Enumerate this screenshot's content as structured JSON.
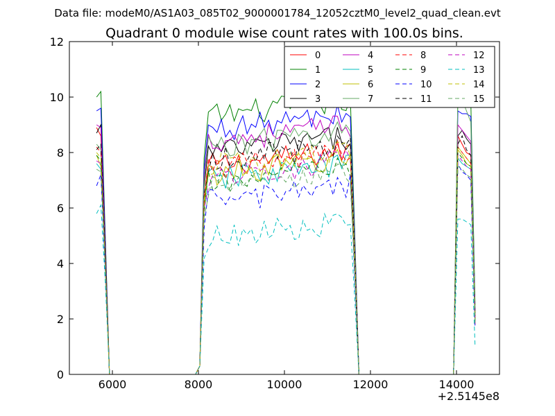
{
  "figure": {
    "suptitle": "Data file: modeM0/AS1A03_085T02_9000001784_12052cztM0_level2_quad_clean.evt"
  },
  "chart_data": {
    "type": "line",
    "title": "Quadrant 0 module wise count rates with 100.0s bins.",
    "xlabel": "",
    "ylabel": "",
    "x_offset_label": "+2.5145e8",
    "xlim": [
      5000,
      15000
    ],
    "ylim": [
      0,
      12
    ],
    "xticks": [
      6000,
      8000,
      10000,
      12000,
      14000
    ],
    "xtick_labels": [
      "6000",
      "8000",
      "10000",
      "12000",
      "14000"
    ],
    "yticks": [
      0,
      2,
      4,
      6,
      8,
      10,
      12
    ],
    "ytick_labels": [
      "0",
      "2",
      "4",
      "6",
      "8",
      "10",
      "12"
    ],
    "grid": false,
    "legend_position": "top-right",
    "legend_columns": 4,
    "x": [
      5632,
      5732,
      5832,
      5932,
      6032,
      6132,
      6232,
      6332,
      6432,
      6532,
      6632,
      6732,
      6832,
      6932,
      7032,
      7132,
      7232,
      7332,
      7432,
      7532,
      7632,
      7732,
      7832,
      7932,
      8032,
      8132,
      8232,
      8332,
      8432,
      8532,
      8632,
      8732,
      8832,
      8932,
      9032,
      9132,
      9232,
      9332,
      9432,
      9532,
      9632,
      9732,
      9832,
      9932,
      10032,
      10132,
      10232,
      10332,
      10432,
      10532,
      10632,
      10732,
      10832,
      10932,
      11032,
      11132,
      11232,
      11332,
      11432,
      11532,
      11632,
      11732,
      11832,
      11932,
      12032,
      12132,
      12232,
      12332,
      12432,
      12532,
      12632,
      12732,
      12832,
      12932,
      13032,
      13132,
      13232,
      13332,
      13432,
      13532,
      13632,
      13732,
      13832,
      13932,
      14032,
      14132,
      14232,
      14332,
      14432
    ],
    "segments": [
      {
        "start": 5632,
        "end": 5832,
        "points": 3
      },
      {
        "start": 8132,
        "end": 11632,
        "points": 36
      },
      {
        "start": 14032,
        "end": 14432,
        "points": 5
      }
    ],
    "series": [
      {
        "name": "0",
        "color": "#ff0000",
        "dash": "solid",
        "levels": [
          8.9,
          8.6,
          4.8
        ],
        "plateau": 7.7,
        "tail": [
          8.6,
          8.3,
          8.0,
          7.9,
          2.2
        ]
      },
      {
        "name": "1",
        "color": "#008000",
        "dash": "solid",
        "levels": [
          10.0,
          10.2,
          5.1
        ],
        "plateau": 9.5,
        "tail": [
          10.1,
          9.8,
          9.9,
          9.9,
          2.5
        ]
      },
      {
        "name": "2",
        "color": "#0000ff",
        "dash": "solid",
        "levels": [
          9.5,
          9.6,
          4.9
        ],
        "plateau": 9.0,
        "tail": [
          9.5,
          9.4,
          9.4,
          9.3,
          2.3
        ]
      },
      {
        "name": "3",
        "color": "#000000",
        "dash": "solid",
        "levels": [
          8.7,
          9.0,
          4.7
        ],
        "plateau": 8.2,
        "tail": [
          8.6,
          8.8,
          8.5,
          8.3,
          2.2
        ]
      },
      {
        "name": "4",
        "color": "#bf00bf",
        "dash": "solid",
        "levels": [
          9.0,
          8.9,
          4.6
        ],
        "plateau": 8.6,
        "tail": [
          9.0,
          8.8,
          8.6,
          8.4,
          2.1
        ]
      },
      {
        "name": "5",
        "color": "#00bfbf",
        "dash": "solid",
        "levels": [
          7.6,
          7.4,
          4.1
        ],
        "plateau": 7.2,
        "tail": [
          7.8,
          7.6,
          7.5,
          7.4,
          1.9
        ]
      },
      {
        "name": "6",
        "color": "#bfbf00",
        "dash": "solid",
        "levels": [
          7.9,
          7.5,
          4.0
        ],
        "plateau": 7.4,
        "tail": [
          8.1,
          7.9,
          7.6,
          7.5,
          1.8
        ]
      },
      {
        "name": "7",
        "color": "#66aa66",
        "dash": "solid",
        "levels": [
          8.3,
          8.1,
          4.3
        ],
        "plateau": 8.4,
        "tail": [
          10.1,
          9.9,
          9.5,
          9.1,
          2.2
        ]
      },
      {
        "name": "8",
        "color": "#ff0000",
        "dash": "dashed",
        "levels": [
          8.2,
          8.0,
          4.2
        ],
        "plateau": 7.6,
        "tail": [
          8.2,
          8.0,
          7.8,
          7.6,
          2.0
        ]
      },
      {
        "name": "9",
        "color": "#008000",
        "dash": "dashed",
        "levels": [
          7.9,
          7.7,
          4.1
        ],
        "plateau": 7.1,
        "tail": [
          8.0,
          7.8,
          7.6,
          7.5,
          1.9
        ]
      },
      {
        "name": "10",
        "color": "#0000ff",
        "dash": "dashed",
        "levels": [
          6.8,
          7.2,
          3.8
        ],
        "plateau": 6.4,
        "tail": [
          7.6,
          7.3,
          7.2,
          7.0,
          1.7
        ]
      },
      {
        "name": "11",
        "color": "#000000",
        "dash": "dashed",
        "levels": [
          8.1,
          8.3,
          4.4
        ],
        "plateau": 7.9,
        "tail": [
          8.3,
          8.6,
          8.1,
          7.9,
          2.0
        ]
      },
      {
        "name": "12",
        "color": "#bf00bf",
        "dash": "dashed",
        "levels": [
          7.7,
          7.6,
          4.0
        ],
        "plateau": 7.3,
        "tail": [
          7.9,
          7.7,
          7.5,
          7.4,
          1.8
        ]
      },
      {
        "name": "13",
        "color": "#00bfbf",
        "dash": "dashed",
        "levels": [
          5.8,
          6.1,
          3.4
        ],
        "plateau": 5.1,
        "tail": [
          5.6,
          5.6,
          5.5,
          5.4,
          1.0
        ]
      },
      {
        "name": "14",
        "color": "#bfbf00",
        "dash": "dashed",
        "levels": [
          8.0,
          7.8,
          4.1
        ],
        "plateau": 7.7,
        "tail": [
          8.2,
          8.0,
          7.8,
          7.6,
          2.0
        ]
      },
      {
        "name": "15",
        "color": "#66aa66",
        "dash": "dashed",
        "levels": [
          7.4,
          7.3,
          3.9
        ],
        "plateau": 6.9,
        "tail": [
          7.5,
          7.4,
          7.2,
          7.1,
          1.8
        ]
      }
    ]
  }
}
